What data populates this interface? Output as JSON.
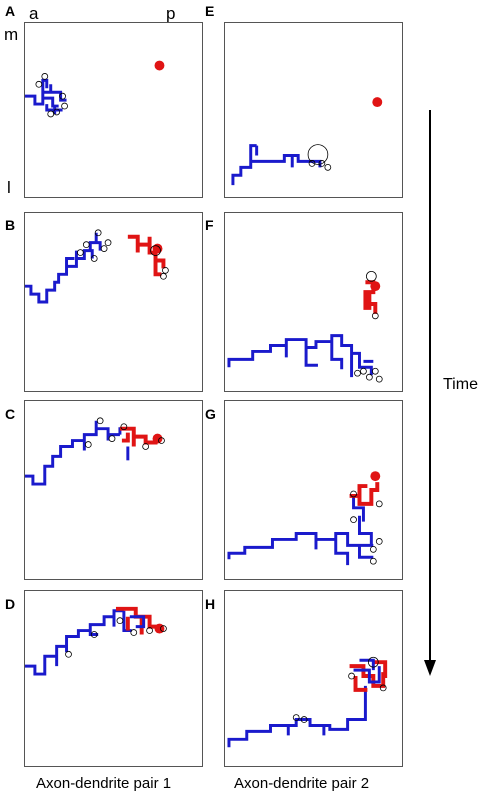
{
  "figure": {
    "orientation_labels": {
      "anterior": "a",
      "posterior": "p",
      "medial": "m",
      "lateral": "l"
    },
    "time_label": "Time",
    "captions": {
      "column1": "Axon-dendrite pair 1",
      "column2": "Axon-dendrite pair 2"
    },
    "colors": {
      "axon": "#1a1acc",
      "dendrite": "#e01414",
      "tip": "#000000",
      "frame": "#555555"
    },
    "panels": [
      {
        "id": "A",
        "label": "A"
      },
      {
        "id": "B",
        "label": "B"
      },
      {
        "id": "C",
        "label": "C"
      },
      {
        "id": "D",
        "label": "D"
      },
      {
        "id": "E",
        "label": "E"
      },
      {
        "id": "F",
        "label": "F"
      },
      {
        "id": "G",
        "label": "G"
      },
      {
        "id": "H",
        "label": "H"
      }
    ]
  }
}
